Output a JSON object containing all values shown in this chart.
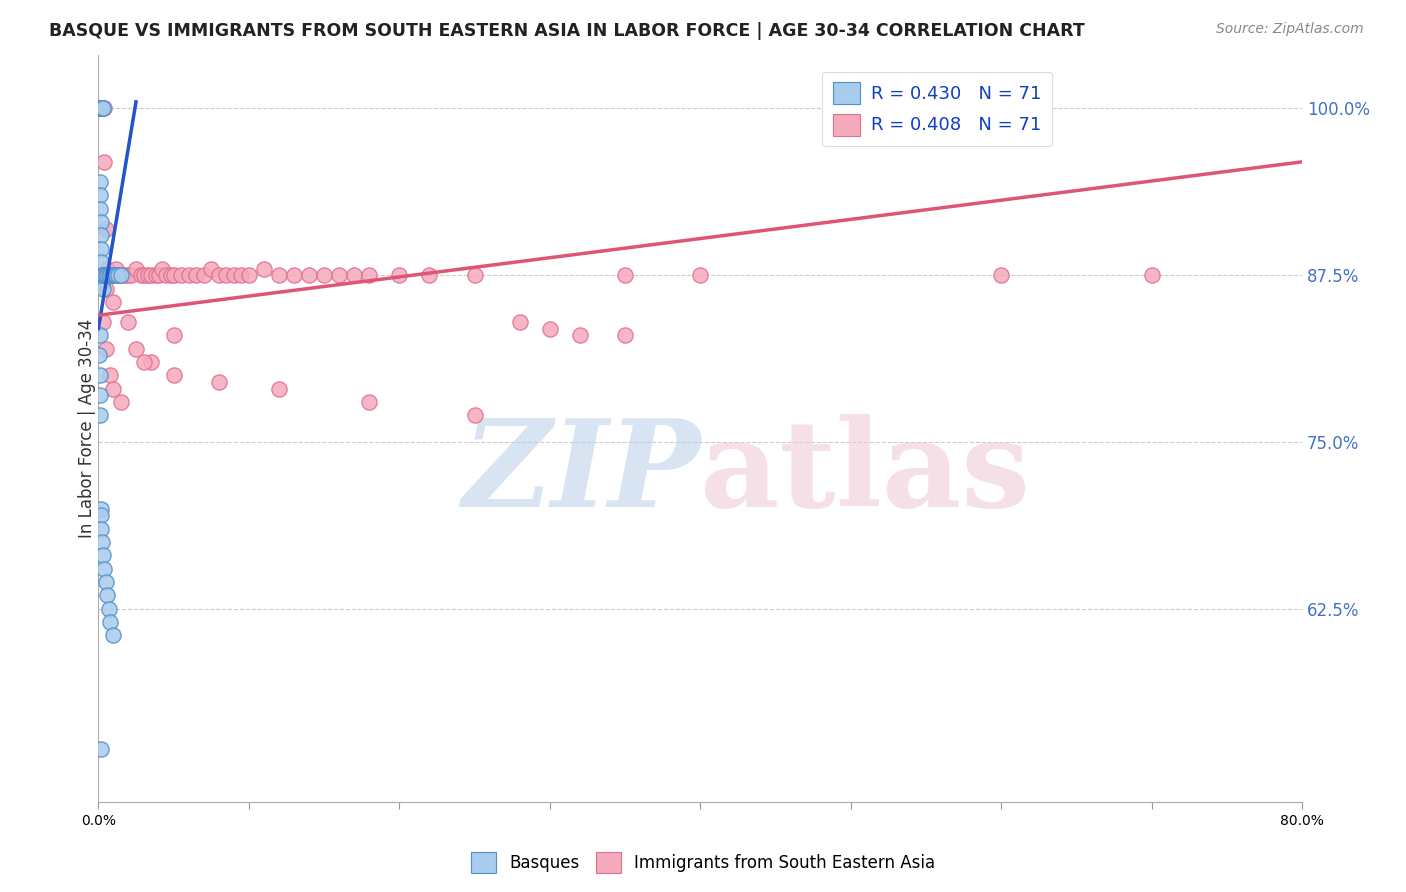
{
  "title": "BASQUE VS IMMIGRANTS FROM SOUTH EASTERN ASIA IN LABOR FORCE | AGE 30-34 CORRELATION CHART",
  "source": "Source: ZipAtlas.com",
  "ylabel": "In Labor Force | Age 30-34",
  "yticks": [
    0.625,
    0.75,
    0.875,
    1.0
  ],
  "ytick_labels": [
    "62.5%",
    "75.0%",
    "87.5%",
    "100.0%"
  ],
  "xmin": 0.0,
  "xmax": 0.8,
  "ymin": 0.48,
  "ymax": 1.04,
  "legend_blue_r": "R = 0.430",
  "legend_blue_n": "N = 71",
  "legend_pink_r": "R = 0.408",
  "legend_pink_n": "N = 71",
  "blue_color": "#A8CCEE",
  "pink_color": "#F5AABB",
  "blue_edge": "#5090C8",
  "pink_edge": "#E07090",
  "blue_line_color": "#2255CC",
  "pink_line_color": "#E05575",
  "blue_scatter": {
    "x": [
      0.0005,
      0.0006,
      0.0007,
      0.0007,
      0.0008,
      0.0008,
      0.0009,
      0.0009,
      0.001,
      0.001,
      0.001,
      0.001,
      0.001,
      0.001,
      0.0011,
      0.0012,
      0.0012,
      0.0013,
      0.0014,
      0.0015,
      0.0015,
      0.0016,
      0.0017,
      0.0018,
      0.002,
      0.002,
      0.002,
      0.0022,
      0.0025,
      0.003,
      0.001,
      0.0012,
      0.0013,
      0.0015,
      0.0016,
      0.0018,
      0.002,
      0.0022,
      0.0025,
      0.003,
      0.003,
      0.0035,
      0.004,
      0.004,
      0.005,
      0.006,
      0.007,
      0.008,
      0.009,
      0.01,
      0.011,
      0.012,
      0.013,
      0.015,
      0.001,
      0.0005,
      0.0008,
      0.001,
      0.0012,
      0.0015,
      0.0018,
      0.002,
      0.0025,
      0.003,
      0.004,
      0.005,
      0.006,
      0.007,
      0.008,
      0.01,
      0.002
    ],
    "y": [
      1.0,
      1.0,
      1.0,
      1.0,
      1.0,
      1.0,
      1.0,
      1.0,
      1.0,
      1.0,
      1.0,
      1.0,
      1.0,
      1.0,
      1.0,
      1.0,
      1.0,
      1.0,
      1.0,
      1.0,
      1.0,
      1.0,
      1.0,
      1.0,
      1.0,
      1.0,
      1.0,
      1.0,
      1.0,
      1.0,
      0.945,
      0.935,
      0.925,
      0.915,
      0.905,
      0.895,
      0.885,
      0.875,
      0.87,
      0.865,
      0.875,
      0.875,
      0.875,
      0.875,
      0.875,
      0.875,
      0.875,
      0.875,
      0.875,
      0.875,
      0.875,
      0.875,
      0.875,
      0.875,
      0.83,
      0.815,
      0.8,
      0.785,
      0.77,
      0.7,
      0.695,
      0.685,
      0.675,
      0.665,
      0.655,
      0.645,
      0.635,
      0.625,
      0.615,
      0.605,
      0.52
    ]
  },
  "pink_scatter": {
    "x": [
      0.003,
      0.004,
      0.004,
      0.005,
      0.006,
      0.007,
      0.008,
      0.009,
      0.01,
      0.012,
      0.015,
      0.018,
      0.02,
      0.022,
      0.025,
      0.028,
      0.03,
      0.033,
      0.035,
      0.038,
      0.04,
      0.042,
      0.045,
      0.048,
      0.05,
      0.055,
      0.06,
      0.065,
      0.07,
      0.075,
      0.08,
      0.085,
      0.09,
      0.095,
      0.1,
      0.11,
      0.12,
      0.13,
      0.14,
      0.15,
      0.16,
      0.17,
      0.18,
      0.2,
      0.22,
      0.25,
      0.28,
      0.3,
      0.32,
      0.35,
      0.003,
      0.005,
      0.008,
      0.01,
      0.015,
      0.025,
      0.035,
      0.05,
      0.35,
      0.6,
      0.7,
      0.005,
      0.01,
      0.02,
      0.03,
      0.05,
      0.08,
      0.12,
      0.18,
      0.25,
      0.4
    ],
    "y": [
      1.0,
      1.0,
      0.96,
      0.91,
      0.88,
      0.875,
      0.875,
      0.875,
      0.875,
      0.88,
      0.875,
      0.875,
      0.875,
      0.875,
      0.88,
      0.875,
      0.875,
      0.875,
      0.875,
      0.875,
      0.875,
      0.88,
      0.875,
      0.875,
      0.875,
      0.875,
      0.875,
      0.875,
      0.875,
      0.88,
      0.875,
      0.875,
      0.875,
      0.875,
      0.875,
      0.88,
      0.875,
      0.875,
      0.875,
      0.875,
      0.875,
      0.875,
      0.875,
      0.875,
      0.875,
      0.875,
      0.84,
      0.835,
      0.83,
      0.83,
      0.84,
      0.82,
      0.8,
      0.79,
      0.78,
      0.82,
      0.81,
      0.83,
      0.875,
      0.875,
      0.875,
      0.865,
      0.855,
      0.84,
      0.81,
      0.8,
      0.795,
      0.79,
      0.78,
      0.77,
      0.875
    ]
  },
  "blue_line": {
    "x0": 0.0,
    "x1": 0.025,
    "y0": 0.835,
    "y1": 1.005
  },
  "pink_line": {
    "x0": 0.0,
    "x1": 0.8,
    "y0": 0.845,
    "y1": 0.96
  }
}
